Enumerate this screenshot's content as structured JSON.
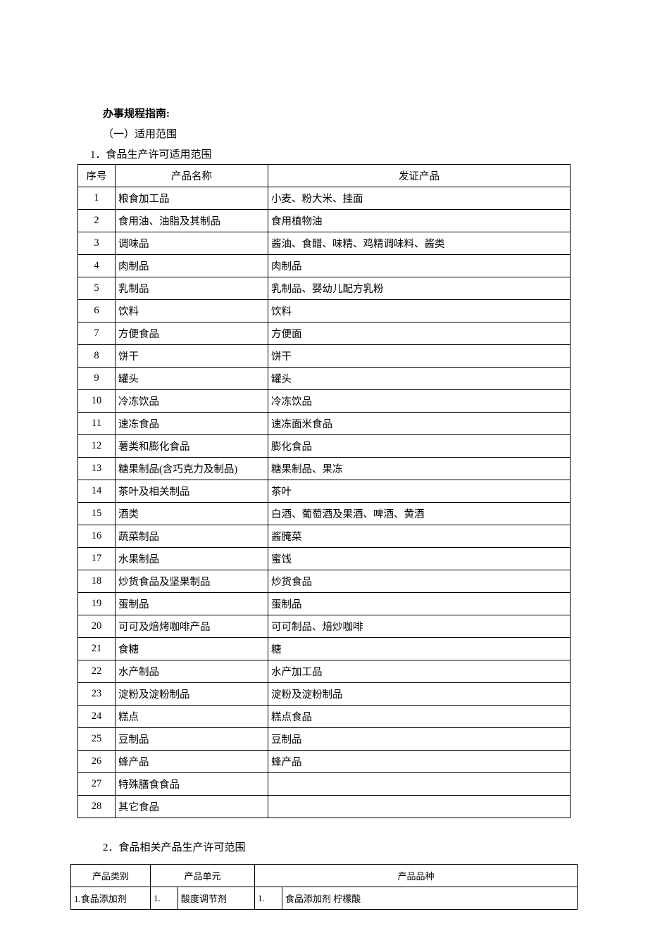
{
  "doc": {
    "title": "办事规程指南:",
    "section1_heading": "（一）适用范围",
    "subsection1": "1．食品生产许可适用范围",
    "table1": {
      "headers": {
        "seq": "序号",
        "name": "产品名称",
        "cert": "发证产品"
      },
      "rows": [
        {
          "seq": "1",
          "name": "粮食加工品",
          "cert": "小麦、粉大米、挂面"
        },
        {
          "seq": "2",
          "name": "食用油、油脂及其制品",
          "cert": "食用植物油"
        },
        {
          "seq": "3",
          "name": "调味品",
          "cert": "酱油、食醋、味精、鸡精调味料、酱类"
        },
        {
          "seq": "4",
          "name": "肉制品",
          "cert": "肉制品"
        },
        {
          "seq": "5",
          "name": "乳制品",
          "cert": "乳制品、婴幼儿配方乳粉"
        },
        {
          "seq": "6",
          "name": "饮料",
          "cert": "饮料"
        },
        {
          "seq": "7",
          "name": "方便食品",
          "cert": "方便面"
        },
        {
          "seq": "8",
          "name": "饼干",
          "cert": "饼干"
        },
        {
          "seq": "9",
          "name": "罐头",
          "cert": "罐头"
        },
        {
          "seq": "10",
          "name": "冷冻饮品",
          "cert": "冷冻饮品"
        },
        {
          "seq": "11",
          "name": "速冻食品",
          "cert": "速冻面米食品"
        },
        {
          "seq": "12",
          "name": "薯类和膨化食品",
          "cert": "膨化食品"
        },
        {
          "seq": "13",
          "name": "糖果制品(含巧克力及制品)",
          "cert": "糖果制品、果冻"
        },
        {
          "seq": "14",
          "name": "茶叶及相关制品",
          "cert": "茶叶"
        },
        {
          "seq": "15",
          "name": "酒类",
          "cert": "白酒、葡萄酒及果酒、啤酒、黄酒"
        },
        {
          "seq": "16",
          "name": "蔬菜制品",
          "cert": "酱腌菜"
        },
        {
          "seq": "17",
          "name": "水果制品",
          "cert": "蜜饯"
        },
        {
          "seq": "18",
          "name": "炒货食品及坚果制品",
          "cert": "炒货食品"
        },
        {
          "seq": "19",
          "name": "蛋制品",
          "cert": "蛋制品"
        },
        {
          "seq": "20",
          "name": "可可及焙烤咖啡产品",
          "cert": "可可制品、焙炒咖啡"
        },
        {
          "seq": "21",
          "name": "食糖",
          "cert": "糖"
        },
        {
          "seq": "22",
          "name": "水产制品",
          "cert": "水产加工品"
        },
        {
          "seq": "23",
          "name": "淀粉及淀粉制品",
          "cert": "淀粉及淀粉制品"
        },
        {
          "seq": "24",
          "name": "糕点",
          "cert": "糕点食品"
        },
        {
          "seq": "25",
          "name": "豆制品",
          "cert": "豆制品"
        },
        {
          "seq": "26",
          "name": "蜂产品",
          "cert": "蜂产品"
        },
        {
          "seq": "27",
          "name": "特殊膳食食品",
          "cert": ""
        },
        {
          "seq": "28",
          "name": "其它食品",
          "cert": ""
        }
      ]
    },
    "subsection2": "2．食品相关产品生产许可范围",
    "table2": {
      "headers": {
        "category": "产品类别",
        "unit": "产品单元",
        "variety": "产品品种"
      },
      "rows": [
        {
          "category": "1.食品添加剂",
          "unit_idx": "1.",
          "unit": "酸度调节剂",
          "variety_idx": "1.",
          "variety": "食品添加剂 柠檬酸"
        }
      ]
    }
  },
  "style": {
    "background": "#ffffff",
    "text_color": "#000000",
    "border_color": "#000000",
    "body_font": "SimSun",
    "font_size_body": 15,
    "font_size_table2": 13
  }
}
